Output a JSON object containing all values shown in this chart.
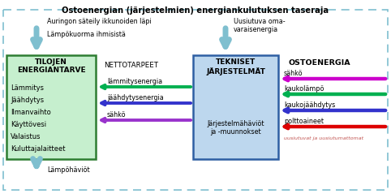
{
  "title": "Ostoenergian (järjestelmien) energiankulutuksen taseraja",
  "outer_border_color": "#7fbfcf",
  "box1_facecolor": "#c6efce",
  "box1_edgecolor": "#2e7d32",
  "box1_title": "TILOJEN\nENERGIANTARVE",
  "box1_items": [
    "Lämmitys",
    "Jäähdytys",
    "Ilmanvaihto",
    "Käyttövesi",
    "Valaistus",
    "Kuluttajalaitteet"
  ],
  "box2_facecolor": "#bdd7ee",
  "box2_edgecolor": "#2e5fa3",
  "box2_title": "TEKNISET\nJÄRJESTELMÄT",
  "box2_body": "Järjestelmähäviöt\nja -muunnokset",
  "label_nettotarpeet": "NETTOTARPEET",
  "label_lammitysenergia": "lämmitysenergia",
  "label_jaahdytysenergia": "jäähdytysenergia",
  "label_sahko_net": "sähkö",
  "label_ostoenergia": "OSTOENERGIA",
  "label_sahko2": "sähkö",
  "label_kaukolampo": "kaukolämpö",
  "label_kaukojaahdytys": "kaukojäähdytys",
  "label_polttoaineet": "polttoaineet",
  "label_uusiutuvat": "uusiutuvat ja uusiutumattomat",
  "label_aurinko": "Auringon säteily ikkunoiden läpi",
  "label_lampo": "Lämpökuorma ihmisistä",
  "label_uusiutuva": "Uusiutuva oma-\nvaraisenergia",
  "label_lampohaviot": "Lämpöhäviöt",
  "arrow_lammitys_color": "#00b050",
  "arrow_jaahdytys_color": "#3333cc",
  "arrow_sahko_net_color": "#9933cc",
  "arrow_sahko_in_color": "#cc00cc",
  "arrow_kaukolampo_color": "#00b050",
  "arrow_kaukojaahdytys_color": "#3333cc",
  "arrow_polttoaineet_color": "#dd0000",
  "arrow_down_color": "#7fbfcf",
  "dpi": 100,
  "figsize": [
    4.82,
    2.39
  ]
}
